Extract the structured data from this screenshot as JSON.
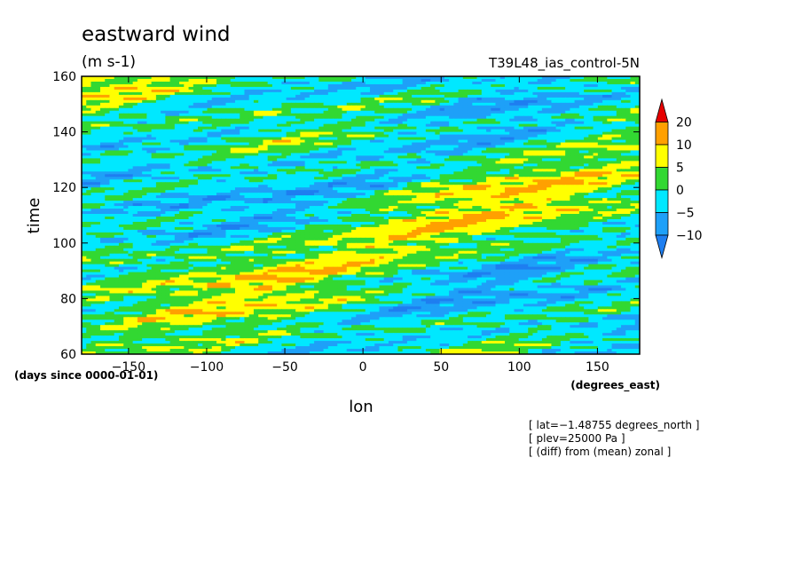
{
  "chart_data": {
    "type": "heatmap",
    "title": "eastward wind",
    "units": "(m s-1)",
    "case_label": "T39L48_ias_control-5N",
    "xlabel": "lon",
    "ylabel": "time",
    "x_unit_label": "(degrees_east)",
    "y_unit_label": "(days since 0000-01-01)",
    "xlim": [
      -180,
      177
    ],
    "ylim": [
      60,
      160
    ],
    "x_ticks": [
      -150,
      -100,
      -50,
      0,
      50,
      100,
      150
    ],
    "y_ticks": [
      60,
      80,
      100,
      120,
      140,
      160
    ],
    "x_tick_labels": [
      "−150",
      "−100",
      "−50",
      "0",
      "50",
      "100",
      "150"
    ],
    "y_tick_labels": [
      "60",
      "80",
      "100",
      "120",
      "140",
      "160"
    ],
    "colorbar": {
      "levels": [
        -10,
        -5,
        0,
        5,
        10,
        20
      ],
      "level_labels": [
        "−10",
        "−5",
        "0",
        "5",
        "10",
        "20"
      ],
      "colors": [
        "#1e7ef0",
        "#1ea0f8",
        "#00e8ff",
        "#32d832",
        "#ffff00",
        "#ffa000",
        "#e60000"
      ],
      "extend": "both"
    },
    "annotations": [
      "[ lat=−1.48755 degrees_north ]",
      "[ plev=25000 Pa ]",
      "[ (diff) from (mean) zonal ]"
    ]
  }
}
